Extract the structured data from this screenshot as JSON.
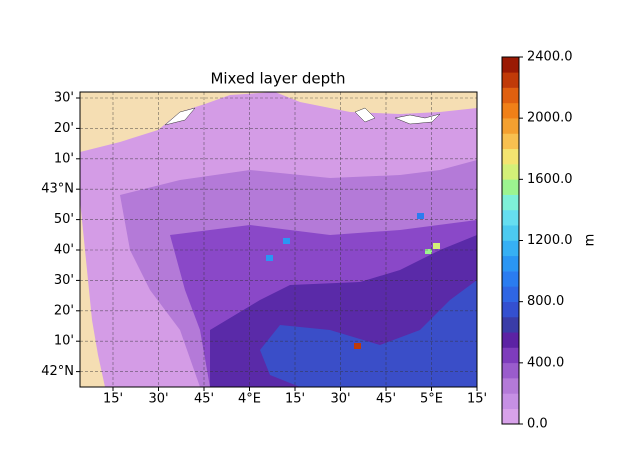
{
  "title": "Mixed layer depth",
  "lat_labels": [
    "30'",
    "20'",
    "10'",
    "43°N",
    "50'",
    "40'",
    "30'",
    "20'",
    "10'",
    "42°N"
  ],
  "lon_labels": [
    "15'",
    "30'",
    "45'",
    "4°E",
    "15'",
    "30'",
    "45'",
    "5°E",
    "15'"
  ],
  "colorbar": {
    "label": "m",
    "lim": [
      0,
      2400
    ],
    "ticks": [
      {
        "value": 0,
        "label": "0.0"
      },
      {
        "value": 400,
        "label": "400.0"
      },
      {
        "value": 800,
        "label": "800.0"
      },
      {
        "value": 1200,
        "label": "1200.0"
      },
      {
        "value": 1600,
        "label": "1600.0"
      },
      {
        "value": 2000,
        "label": "2000.0"
      },
      {
        "value": 2400,
        "label": "2400.0"
      }
    ],
    "colors": [
      "#d8a2ea",
      "#c690e4",
      "#b47ad8",
      "#9a5ccc",
      "#7e3cbc",
      "#5c22a4",
      "#3a3ca8",
      "#3450d0",
      "#2f66e4",
      "#2a7cf0",
      "#2a96f4",
      "#36b0f4",
      "#4ccaf0",
      "#66def0",
      "#7ef0d8",
      "#9cf490",
      "#d4f078",
      "#f4e470",
      "#f8c050",
      "#f4a030",
      "#f08018",
      "#e06010",
      "#c03a08",
      "#9a1a04"
    ]
  }
}
